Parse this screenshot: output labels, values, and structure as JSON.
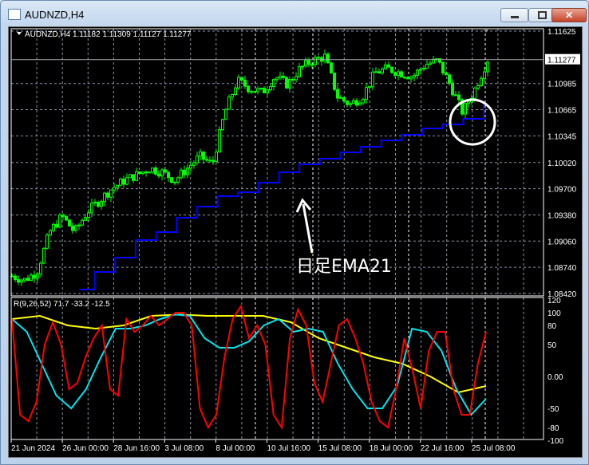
{
  "window": {
    "title": "AUDNZD,H4",
    "buttons": [
      "minimize",
      "maximize",
      "close"
    ]
  },
  "chart": {
    "info_line": "AUDNZD,H4  1.11182 1.11309 1.11127 1.11277",
    "indicator_label": "R(9,26,52) 71.7 -33.2 -12.5",
    "annotation_text": "日足EMA21",
    "colors": {
      "background": "#000000",
      "candle": "#00ff00",
      "ema": "#0000ff",
      "red_line": "#ff0000",
      "cyan_line": "#00e5ee",
      "yellow_line": "#ffff00",
      "grid": "#8a93a0"
    }
  },
  "chart_data": [
    {
      "type": "candlestick",
      "symbol": "AUDNZD",
      "timeframe": "H4",
      "ylim": [
        1.0842,
        1.11625
      ],
      "y_ticks": [
        "1.11625",
        "1.10985",
        "1.10665",
        "1.10345",
        "1.10020",
        "1.09700",
        "1.09380",
        "1.09060",
        "1.08740",
        "1.08420"
      ],
      "current_price": "1.11277",
      "x_ticks": [
        "21 Jun 2024",
        "26 Jun 00:00",
        "28 Jun 16:00",
        "3 Jul 08:00",
        "8 Jul 00:00",
        "10 Jul 16:00",
        "15 Jul 08:00",
        "18 Jul 00:00",
        "22 Jul 16:00",
        "25 Jul 08:00"
      ],
      "close_path": [
        1.08634,
        1.08585,
        1.08683,
        1.0917,
        1.09365,
        1.0917,
        1.09414,
        1.0956,
        1.09706,
        1.09803,
        1.09871,
        1.09949,
        1.09901,
        1.09803,
        1.09949,
        1.10095,
        1.09998,
        1.10631,
        1.11021,
        1.10924,
        1.10875,
        1.1107,
        1.10972,
        1.11167,
        1.11264,
        1.11313,
        1.10826,
        1.10729,
        1.10826,
        1.11118,
        1.11167,
        1.11118,
        1.1107,
        1.11216,
        1.11264,
        1.10972,
        1.10631,
        1.10924,
        1.11277
      ],
      "ema21_series": {
        "name": "日足EMA21",
        "values": [
          1.08469,
          1.08683,
          1.08858,
          1.09073,
          1.0917,
          1.09345,
          1.09482,
          1.09608,
          1.09657,
          1.09774,
          1.09901,
          1.09998,
          1.10066,
          1.10144,
          1.10212,
          1.1029,
          1.10359,
          1.10437,
          1.10485,
          1.10554,
          1.10777
        ]
      }
    },
    {
      "type": "line",
      "title": "R(9,26,52) 71.7 -33.2 -12.5",
      "ylim": [
        -100,
        120
      ],
      "y_ticks": [
        "120",
        "100",
        "80",
        "50",
        "0.00",
        "-50",
        "-80",
        "-100"
      ],
      "series": [
        {
          "color": "#ff0000",
          "values": [
            90,
            -60,
            -70,
            -40,
            50,
            85,
            50,
            -20,
            -10,
            30,
            60,
            80,
            -20,
            -30,
            90,
            70,
            80,
            95,
            80,
            90,
            100,
            100,
            80,
            -50,
            -80,
            -60,
            30,
            90,
            110,
            60,
            80,
            50,
            -60,
            -80,
            60,
            105,
            80,
            -10,
            -40,
            20,
            80,
            90,
            60,
            20,
            -40,
            -70,
            -80,
            -20,
            60,
            10,
            -50,
            40,
            70,
            70,
            -20,
            -60,
            -60,
            20,
            70
          ]
        },
        {
          "color": "#00e5ee",
          "values": [
            90,
            70,
            20,
            -30,
            -50,
            -20,
            30,
            75,
            75,
            80,
            90,
            97,
            95,
            60,
            45,
            45,
            55,
            80,
            90,
            70,
            75,
            70,
            20,
            -20,
            -50,
            -50,
            -15,
            75,
            70,
            40,
            -20,
            -60,
            -35
          ]
        },
        {
          "color": "#ffff00",
          "values": [
            90,
            95,
            80,
            75,
            80,
            95,
            97,
            95,
            95,
            95,
            85,
            60,
            45,
            30,
            20,
            0,
            -25,
            -15
          ]
        }
      ]
    }
  ]
}
